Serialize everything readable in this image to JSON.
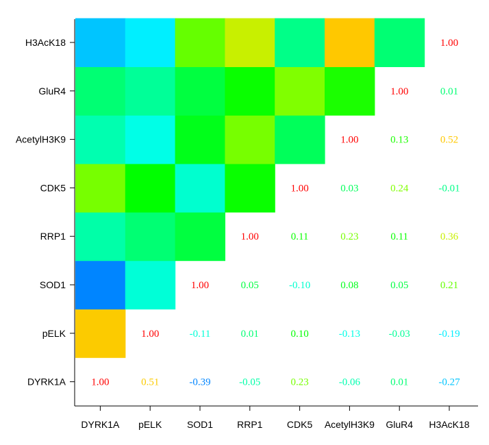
{
  "chart_data": {
    "type": "heatmap",
    "title": "",
    "xlabel": "",
    "ylabel": "",
    "x_categories": [
      "DYRK1A",
      "pELK",
      "SOD1",
      "RRP1",
      "CDK5",
      "AcetylH3K9",
      "GluR4",
      "H3AcK18"
    ],
    "y_categories": [
      "DYRK1A",
      "pELK",
      "SOD1",
      "RRP1",
      "CDK5",
      "AcetylH3K9",
      "GluR4",
      "H3AcK18"
    ],
    "matrix": [
      [
        1.0,
        0.51,
        -0.39,
        -0.05,
        0.23,
        -0.06,
        0.01,
        -0.27
      ],
      [
        0.51,
        1.0,
        -0.11,
        0.01,
        0.1,
        -0.13,
        -0.03,
        -0.19
      ],
      [
        -0.39,
        -0.11,
        1.0,
        0.05,
        -0.1,
        0.08,
        0.05,
        0.21
      ],
      [
        -0.05,
        0.01,
        0.05,
        1.0,
        0.11,
        0.23,
        0.11,
        0.36
      ],
      [
        0.23,
        0.1,
        -0.1,
        0.11,
        1.0,
        0.03,
        0.24,
        -0.01
      ],
      [
        -0.06,
        -0.13,
        0.08,
        0.23,
        0.03,
        1.0,
        0.13,
        0.52
      ],
      [
        0.01,
        -0.03,
        0.05,
        0.11,
        0.24,
        0.13,
        1.0,
        0.01
      ],
      [
        -0.27,
        -0.19,
        0.21,
        0.36,
        -0.01,
        0.52,
        0.01,
        1.0
      ]
    ],
    "lower_triangle": "colored cells",
    "upper_triangle": "numeric labels",
    "diagonal": "numeric labels",
    "grid": false,
    "legend": "none"
  }
}
